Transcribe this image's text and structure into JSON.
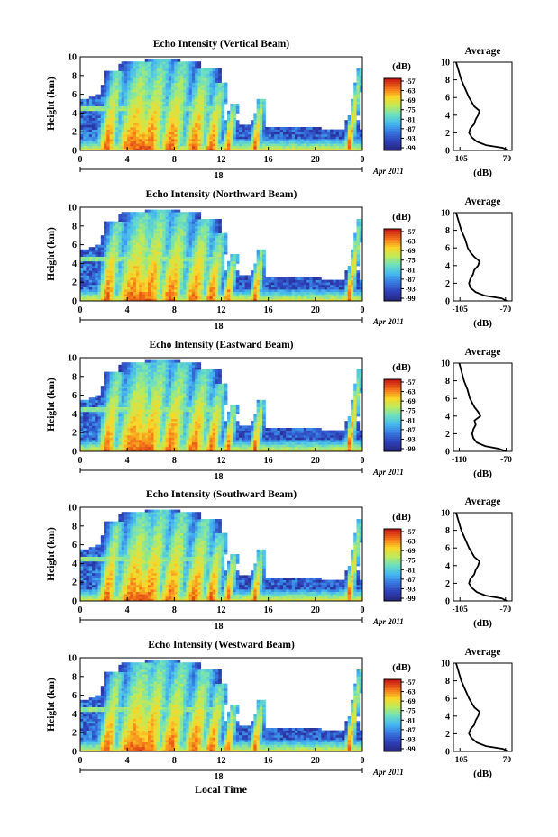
{
  "figure": {
    "date_label": "Apr 2011",
    "day_label": "18",
    "bottom_xlabel": "Local Time"
  },
  "chart_data": [
    {
      "type": "heatmap",
      "title": "Echo Intensity (Vertical Beam)",
      "xlabel": "",
      "ylabel": "Height (km)",
      "x_ticks": [
        "0",
        "4",
        "8",
        "12",
        "16",
        "20",
        "0"
      ],
      "y_ticks": [
        "0",
        "2",
        "4",
        "6",
        "8",
        "10"
      ],
      "xlim": [
        0,
        24
      ],
      "ylim": [
        0,
        10
      ],
      "colorbar": {
        "label": "(dB)",
        "ticks": [
          "-57",
          "-63",
          "-69",
          "-75",
          "-81",
          "-87",
          "-93",
          "-99"
        ]
      },
      "profile": {
        "title": "Average",
        "xlabel": "(dB)",
        "x_ticks": [
          "-105",
          "-70"
        ],
        "y_ticks": [
          "0",
          "2",
          "4",
          "6",
          "8",
          "10"
        ],
        "xlim": [
          -110,
          -65
        ],
        "height": [
          0,
          0.3,
          0.6,
          1.0,
          1.5,
          2.0,
          2.5,
          3.0,
          3.5,
          4.0,
          4.5,
          5.0,
          5.5,
          6.0,
          7.0,
          8.0,
          9.0,
          10.0
        ],
        "value": [
          -68,
          -72,
          -85,
          -92,
          -96,
          -98,
          -97,
          -94,
          -93,
          -91,
          -90,
          -94,
          -96,
          -98,
          -101,
          -104,
          -106,
          -108
        ]
      }
    },
    {
      "type": "heatmap",
      "title": "Echo Intensity (Northward Beam)",
      "xlabel": "",
      "ylabel": "Height (km)",
      "x_ticks": [
        "0",
        "4",
        "8",
        "12",
        "16",
        "20",
        "0"
      ],
      "y_ticks": [
        "0",
        "2",
        "4",
        "6",
        "8",
        "10"
      ],
      "xlim": [
        0,
        24
      ],
      "ylim": [
        0,
        10
      ],
      "colorbar": {
        "label": "(dB)",
        "ticks": [
          "-57",
          "-63",
          "-69",
          "-75",
          "-81",
          "-87",
          "-93",
          "-99"
        ]
      },
      "profile": {
        "title": "Average",
        "xlabel": "(dB)",
        "x_ticks": [
          "-105",
          "-70"
        ],
        "y_ticks": [
          "0",
          "2",
          "4",
          "6",
          "8",
          "10"
        ],
        "xlim": [
          -110,
          -65
        ],
        "height": [
          0,
          0.3,
          0.6,
          1.0,
          1.5,
          2.0,
          2.5,
          3.0,
          3.5,
          4.0,
          4.5,
          5.0,
          5.5,
          6.0,
          7.0,
          8.0,
          9.0,
          10.0
        ],
        "value": [
          -69,
          -73,
          -86,
          -93,
          -97,
          -98,
          -97,
          -95,
          -94,
          -91,
          -90,
          -94,
          -97,
          -99,
          -101,
          -104,
          -106,
          -108
        ]
      }
    },
    {
      "type": "heatmap",
      "title": "Echo Intensity (Eastward Beam)",
      "xlabel": "",
      "ylabel": "Height (km)",
      "x_ticks": [
        "0",
        "4",
        "8",
        "12",
        "16",
        "20",
        "0"
      ],
      "y_ticks": [
        "0",
        "2",
        "4",
        "6",
        "8",
        "10"
      ],
      "xlim": [
        0,
        24
      ],
      "ylim": [
        0,
        10
      ],
      "colorbar": {
        "label": "(dB)",
        "ticks": [
          "-57",
          "-63",
          "-69",
          "-75",
          "-81",
          "-87",
          "-93",
          "-99"
        ]
      },
      "profile": {
        "title": "Average",
        "xlabel": "(dB)",
        "x_ticks": [
          "-110",
          "-70"
        ],
        "y_ticks": [
          "0",
          "2",
          "4",
          "6",
          "8",
          "10"
        ],
        "xlim": [
          -115,
          -65
        ],
        "height": [
          0,
          0.3,
          0.6,
          1.0,
          1.5,
          2.0,
          2.5,
          3.0,
          3.5,
          4.0,
          4.5,
          5.0,
          5.5,
          6.0,
          7.0,
          8.0,
          9.0,
          10.0
        ],
        "value": [
          -70,
          -76,
          -88,
          -95,
          -98,
          -99,
          -98,
          -96,
          -97,
          -92,
          -94,
          -97,
          -99,
          -101,
          -103,
          -106,
          -108,
          -110
        ]
      }
    },
    {
      "type": "heatmap",
      "title": "Echo Intensity (Southward Beam)",
      "xlabel": "",
      "ylabel": "Height (km)",
      "x_ticks": [
        "0",
        "4",
        "8",
        "12",
        "16",
        "20",
        "0"
      ],
      "y_ticks": [
        "0",
        "2",
        "4",
        "6",
        "8",
        "10"
      ],
      "xlim": [
        0,
        24
      ],
      "ylim": [
        0,
        10
      ],
      "colorbar": {
        "label": "(dB)",
        "ticks": [
          "-57",
          "-63",
          "-69",
          "-75",
          "-81",
          "-87",
          "-93",
          "-99"
        ]
      },
      "profile": {
        "title": "Average",
        "xlabel": "(dB)",
        "x_ticks": [
          "-105",
          "-70"
        ],
        "y_ticks": [
          "0",
          "2",
          "4",
          "6",
          "8",
          "10"
        ],
        "xlim": [
          -110,
          -65
        ],
        "height": [
          0,
          0.3,
          0.6,
          1.0,
          1.5,
          2.0,
          2.5,
          3.0,
          3.5,
          4.0,
          4.5,
          5.0,
          5.5,
          6.0,
          7.0,
          8.0,
          9.0,
          10.0
        ],
        "value": [
          -69,
          -73,
          -85,
          -92,
          -96,
          -98,
          -97,
          -94,
          -93,
          -91,
          -90,
          -94,
          -96,
          -98,
          -101,
          -104,
          -106,
          -108
        ]
      }
    },
    {
      "type": "heatmap",
      "title": "Echo Intensity (Westward Beam)",
      "xlabel": "",
      "ylabel": "Height (km)",
      "x_ticks": [
        "0",
        "4",
        "8",
        "12",
        "16",
        "20",
        "0"
      ],
      "y_ticks": [
        "0",
        "2",
        "4",
        "6",
        "8",
        "10"
      ],
      "xlim": [
        0,
        24
      ],
      "ylim": [
        0,
        10
      ],
      "colorbar": {
        "label": "(dB)",
        "ticks": [
          "-57",
          "-63",
          "-69",
          "-75",
          "-81",
          "-87",
          "-93",
          "-99"
        ]
      },
      "profile": {
        "title": "Average",
        "xlabel": "(dB)",
        "x_ticks": [
          "-105",
          "-70"
        ],
        "y_ticks": [
          "0",
          "2",
          "4",
          "6",
          "8",
          "10"
        ],
        "xlim": [
          -110,
          -65
        ],
        "height": [
          0,
          0.3,
          0.6,
          1.0,
          1.5,
          2.0,
          2.5,
          3.0,
          3.5,
          4.0,
          4.5,
          5.0,
          5.5,
          6.0,
          7.0,
          8.0,
          9.0,
          10.0
        ],
        "value": [
          -68,
          -72,
          -85,
          -92,
          -96,
          -98,
          -97,
          -94,
          -93,
          -91,
          -90,
          -94,
          -96,
          -98,
          -101,
          -104,
          -106,
          -108
        ]
      }
    }
  ]
}
